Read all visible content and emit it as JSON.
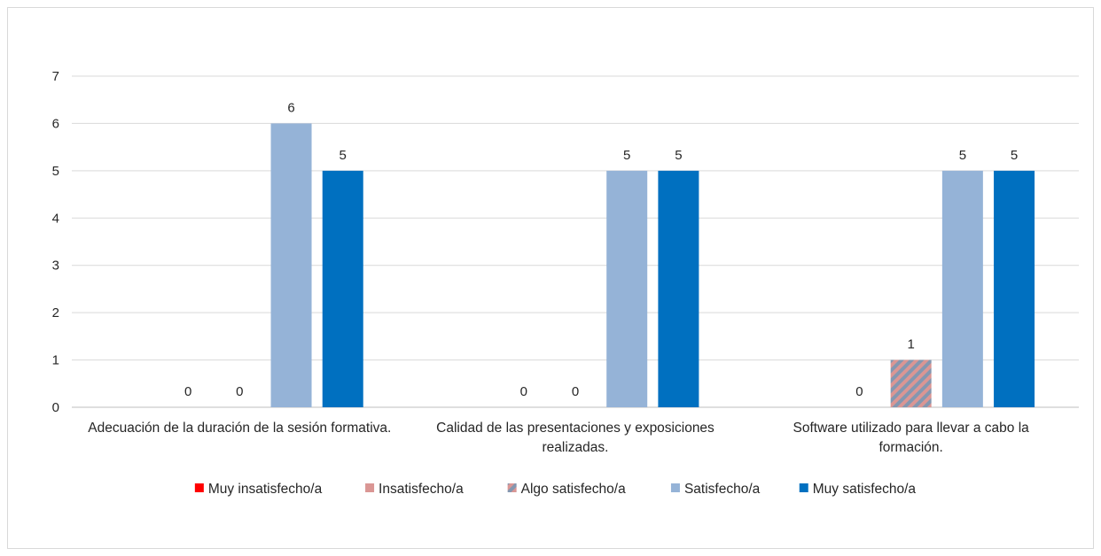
{
  "chart_data": {
    "type": "bar",
    "title": "",
    "xlabel": "",
    "ylabel": "",
    "ylim": [
      0,
      7
    ],
    "yticks": [
      "0",
      "1",
      "2",
      "3",
      "4",
      "5",
      "6",
      "7"
    ],
    "grid": true,
    "legend_position": "bottom",
    "categories": [
      [
        "Adecuación de la duración de la sesión formativa."
      ],
      [
        "Calidad de las presentaciones y exposiciones",
        "realizadas."
      ],
      [
        "Software utilizado para llevar a cabo la",
        "formación."
      ]
    ],
    "series": [
      {
        "name": "Muy insatisfecho/a",
        "color": "#ff0000",
        "pattern": "solid",
        "values": [
          0,
          0,
          0
        ]
      },
      {
        "name": "Insatisfecho/a",
        "color": "#da9694",
        "pattern": "solid",
        "values": [
          0,
          0,
          0
        ]
      },
      {
        "name": "Algo satisfecho/a",
        "color": "#da9694",
        "pattern": "diagonal-stripes",
        "stripe_color": "#8497b0",
        "values": [
          0,
          0,
          1
        ]
      },
      {
        "name": "Satisfecho/a",
        "color": "#95b3d7",
        "pattern": "solid",
        "values": [
          6,
          5,
          5
        ]
      },
      {
        "name": "Muy satisfecho/a",
        "color": "#0070c0",
        "pattern": "solid",
        "values": [
          5,
          5,
          5
        ]
      }
    ],
    "data_labels": [
      [
        "",
        "0",
        "0",
        "6",
        "5"
      ],
      [
        "",
        "0",
        "0",
        "5",
        "5"
      ],
      [
        "",
        "0",
        "1",
        "5",
        "5"
      ]
    ]
  }
}
